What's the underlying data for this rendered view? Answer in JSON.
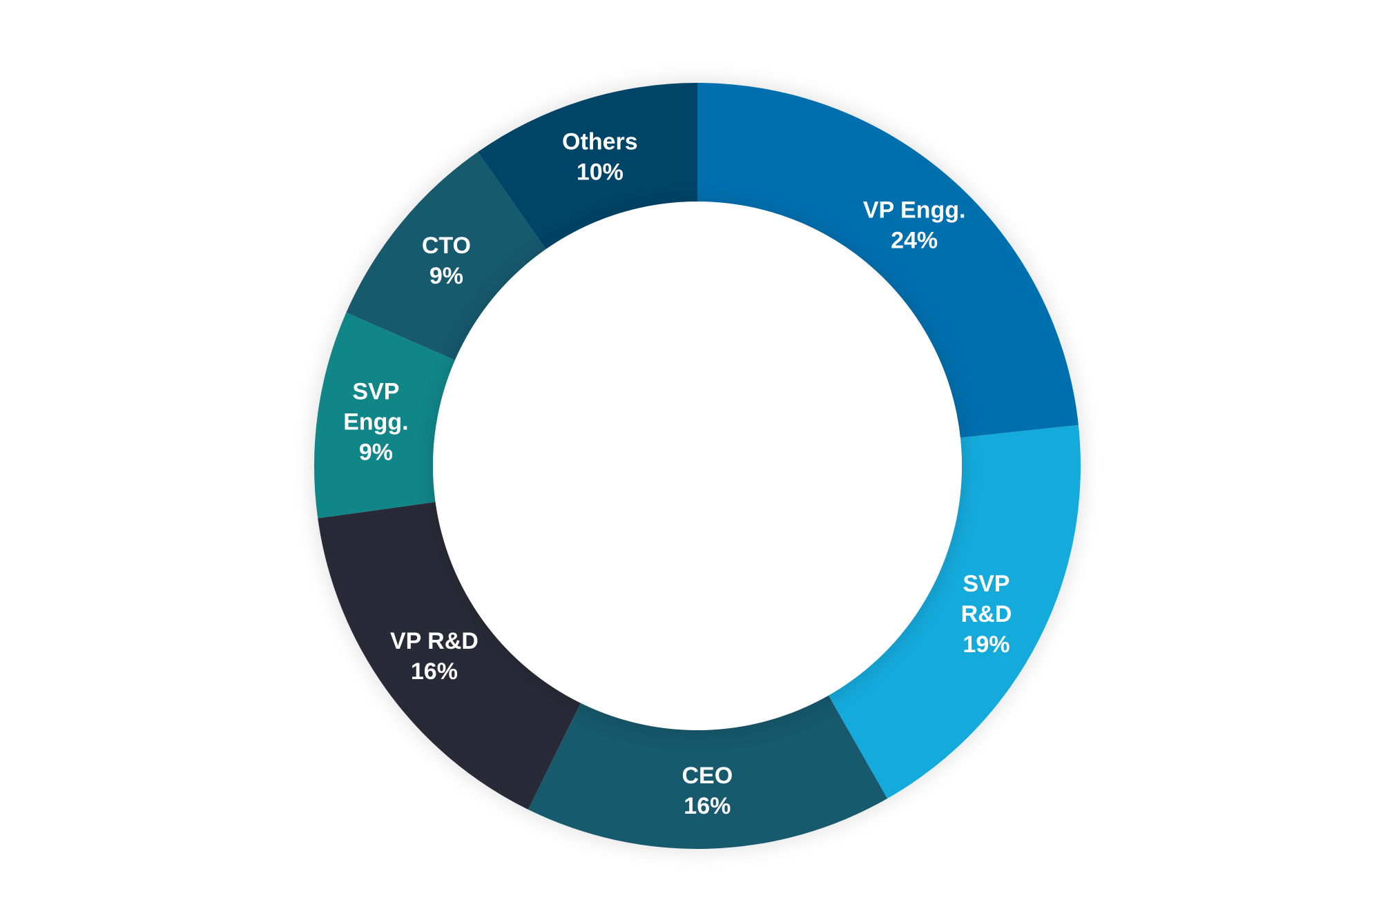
{
  "chart_data": {
    "type": "pie",
    "donut": true,
    "title": "",
    "slices": [
      {
        "name": "VP Engg.",
        "value": 24,
        "label_lines": [
          "VP Engg.",
          "24%"
        ],
        "color": "#006fae"
      },
      {
        "name": "SVP R&D",
        "value": 19,
        "label_lines": [
          "SVP",
          "R&D",
          "19%"
        ],
        "color": "#15aadc"
      },
      {
        "name": "CEO",
        "value": 16,
        "label_lines": [
          "CEO",
          "16%"
        ],
        "color": "#17596d"
      },
      {
        "name": "VP R&D",
        "value": 16,
        "label_lines": [
          "VP R&D",
          "16%"
        ],
        "color": "#282b37"
      },
      {
        "name": "SVP Engg.",
        "value": 9,
        "label_lines": [
          "SVP",
          "Engg.",
          "9%"
        ],
        "color": "#118689"
      },
      {
        "name": "CTO",
        "value": 9,
        "label_lines": [
          "CTO",
          "9%"
        ],
        "color": "#17596d"
      },
      {
        "name": "Others",
        "value": 10,
        "label_lines": [
          "Others",
          "10%"
        ],
        "color": "#004468"
      }
    ],
    "start_angle": "12 o'clock",
    "direction": "clockwise",
    "legend": "none",
    "labels": "inside slices"
  }
}
